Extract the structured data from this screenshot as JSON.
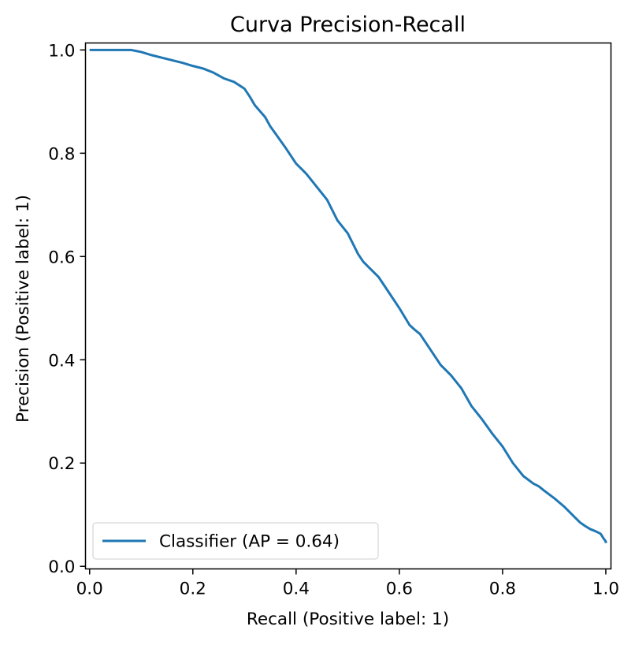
{
  "chart_data": {
    "type": "line",
    "title": "Curva Precision-Recall",
    "xlabel": "Recall (Positive label: 1)",
    "ylabel": "Precision (Positive label: 1)",
    "xlim": [
      -0.008,
      1.01
    ],
    "ylim": [
      -0.005,
      1.0135
    ],
    "xticks": [
      0.0,
      0.2,
      0.4,
      0.6,
      0.8,
      1.0
    ],
    "xtick_labels": [
      "0.0",
      "0.2",
      "0.4",
      "0.6",
      "0.8",
      "1.0"
    ],
    "yticks": [
      0.0,
      0.2,
      0.4,
      0.6,
      0.8,
      1.0
    ],
    "ytick_labels": [
      "0.0",
      "0.2",
      "0.4",
      "0.6",
      "0.8",
      "1.0"
    ],
    "grid": false,
    "legend": {
      "position": "lower left",
      "entries": [
        "Classifier (AP = 0.64)"
      ]
    },
    "colors": {
      "series": "#1f77b4",
      "axes": "#000000",
      "legend_border": "#cccccc"
    },
    "series": [
      {
        "name": "Classifier (AP = 0.64)",
        "x": [
          0.0,
          0.02,
          0.05,
          0.08,
          0.09,
          0.1,
          0.12,
          0.14,
          0.16,
          0.18,
          0.2,
          0.22,
          0.24,
          0.26,
          0.28,
          0.3,
          0.31,
          0.32,
          0.34,
          0.35,
          0.36,
          0.38,
          0.4,
          0.41,
          0.42,
          0.44,
          0.46,
          0.47,
          0.48,
          0.5,
          0.52,
          0.53,
          0.54,
          0.56,
          0.58,
          0.6,
          0.62,
          0.63,
          0.64,
          0.66,
          0.68,
          0.7,
          0.72,
          0.74,
          0.76,
          0.78,
          0.8,
          0.82,
          0.84,
          0.86,
          0.87,
          0.88,
          0.9,
          0.92,
          0.94,
          0.95,
          0.96,
          0.97,
          0.98,
          0.99,
          0.995,
          1.0,
          1.0
        ],
        "y": [
          1.0,
          1.0,
          1.0,
          1.0,
          0.998,
          0.996,
          0.99,
          0.985,
          0.98,
          0.975,
          0.969,
          0.964,
          0.956,
          0.945,
          0.938,
          0.925,
          0.91,
          0.893,
          0.87,
          0.852,
          0.838,
          0.81,
          0.78,
          0.77,
          0.76,
          0.735,
          0.71,
          0.69,
          0.67,
          0.645,
          0.605,
          0.59,
          0.58,
          0.56,
          0.53,
          0.5,
          0.467,
          0.458,
          0.45,
          0.42,
          0.39,
          0.37,
          0.345,
          0.31,
          0.285,
          0.257,
          0.232,
          0.2,
          0.175,
          0.16,
          0.155,
          0.147,
          0.132,
          0.115,
          0.095,
          0.085,
          0.078,
          0.072,
          0.068,
          0.063,
          0.055,
          0.048,
          0.045
        ]
      }
    ]
  }
}
